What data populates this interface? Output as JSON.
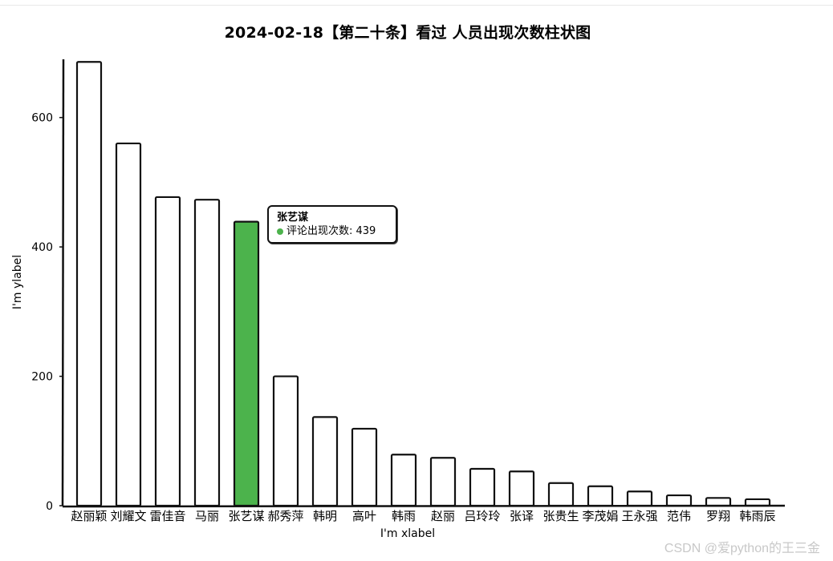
{
  "chart_data": {
    "type": "bar",
    "title": "2024-02-18【第二十条】看过 人员出现次数柱状图",
    "xlabel": "I'm xlabel",
    "ylabel": "I'm ylabel",
    "ylim": [
      0,
      690
    ],
    "yticks": [
      0,
      200,
      400,
      600
    ],
    "categories": [
      "赵丽颖",
      "刘耀文",
      "雷佳音",
      "马丽",
      "张艺谋",
      "郝秀萍",
      "韩明",
      "高叶",
      "韩雨",
      "赵丽",
      "吕玲玲",
      "张译",
      "张贵生",
      "李茂娟",
      "王永强",
      "范伟",
      "罗翔",
      "韩雨辰"
    ],
    "series": [
      {
        "name": "评论出现次数",
        "values": [
          686,
          560,
          477,
          473,
          439,
          200,
          137,
          119,
          79,
          74,
          57,
          53,
          35,
          30,
          22,
          16,
          12,
          10
        ]
      }
    ],
    "highlight_index": 4,
    "colors": {
      "bar_fill": "#ffffff",
      "bar_stroke": "#111111",
      "highlight_fill": "#4cb34c"
    },
    "grid": false
  },
  "tooltip": {
    "title": "张艺谋",
    "series_name": "评论出现次数",
    "value": "439",
    "text": "评论出现次数: 439"
  },
  "watermark": "CSDN @爱python的王三金"
}
